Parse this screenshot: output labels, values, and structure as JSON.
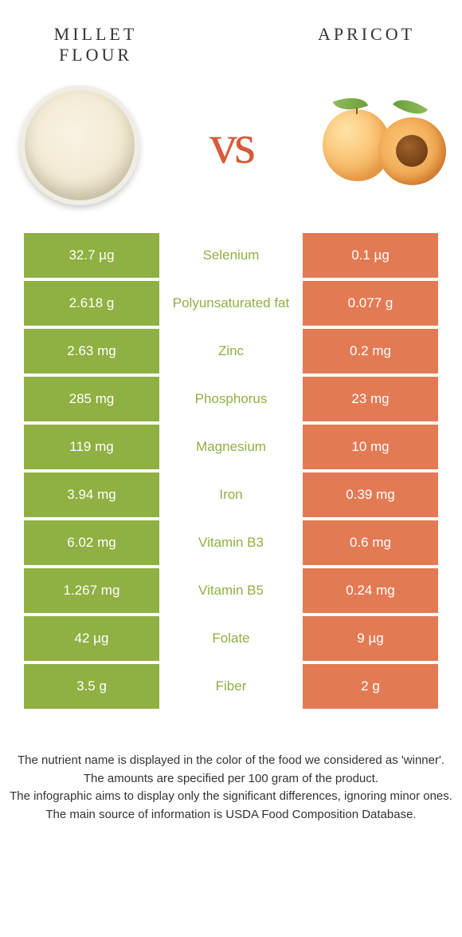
{
  "header": {
    "left_title": "Millet flour",
    "right_title": "Apricot",
    "vs_text": "vs"
  },
  "colors": {
    "left": "#8fb042",
    "right": "#e27b54",
    "vs": "#d85a3a",
    "background": "#ffffff"
  },
  "rows": [
    {
      "left": "32.7 µg",
      "label": "Selenium",
      "right": "0.1 µg",
      "winner": "left"
    },
    {
      "left": "2.618 g",
      "label": "Polyunsaturated fat",
      "right": "0.077 g",
      "winner": "left"
    },
    {
      "left": "2.63 mg",
      "label": "Zinc",
      "right": "0.2 mg",
      "winner": "left"
    },
    {
      "left": "285 mg",
      "label": "Phosphorus",
      "right": "23 mg",
      "winner": "left"
    },
    {
      "left": "119 mg",
      "label": "Magnesium",
      "right": "10 mg",
      "winner": "left"
    },
    {
      "left": "3.94 mg",
      "label": "Iron",
      "right": "0.39 mg",
      "winner": "left"
    },
    {
      "left": "6.02 mg",
      "label": "Vitamin B3",
      "right": "0.6 mg",
      "winner": "left"
    },
    {
      "left": "1.267 mg",
      "label": "Vitamin B5",
      "right": "0.24 mg",
      "winner": "left"
    },
    {
      "left": "42 µg",
      "label": "Folate",
      "right": "9 µg",
      "winner": "left"
    },
    {
      "left": "3.5 g",
      "label": "Fiber",
      "right": "2 g",
      "winner": "left"
    }
  ],
  "footer": {
    "line1": "The nutrient name is displayed in the color of the food we considered as 'winner'.",
    "line2": "The amounts are specified per 100 gram of the product.",
    "line3": "The infographic aims to display only the significant differences, ignoring minor ones.",
    "line4": "The main source of information is USDA Food Composition Database."
  }
}
